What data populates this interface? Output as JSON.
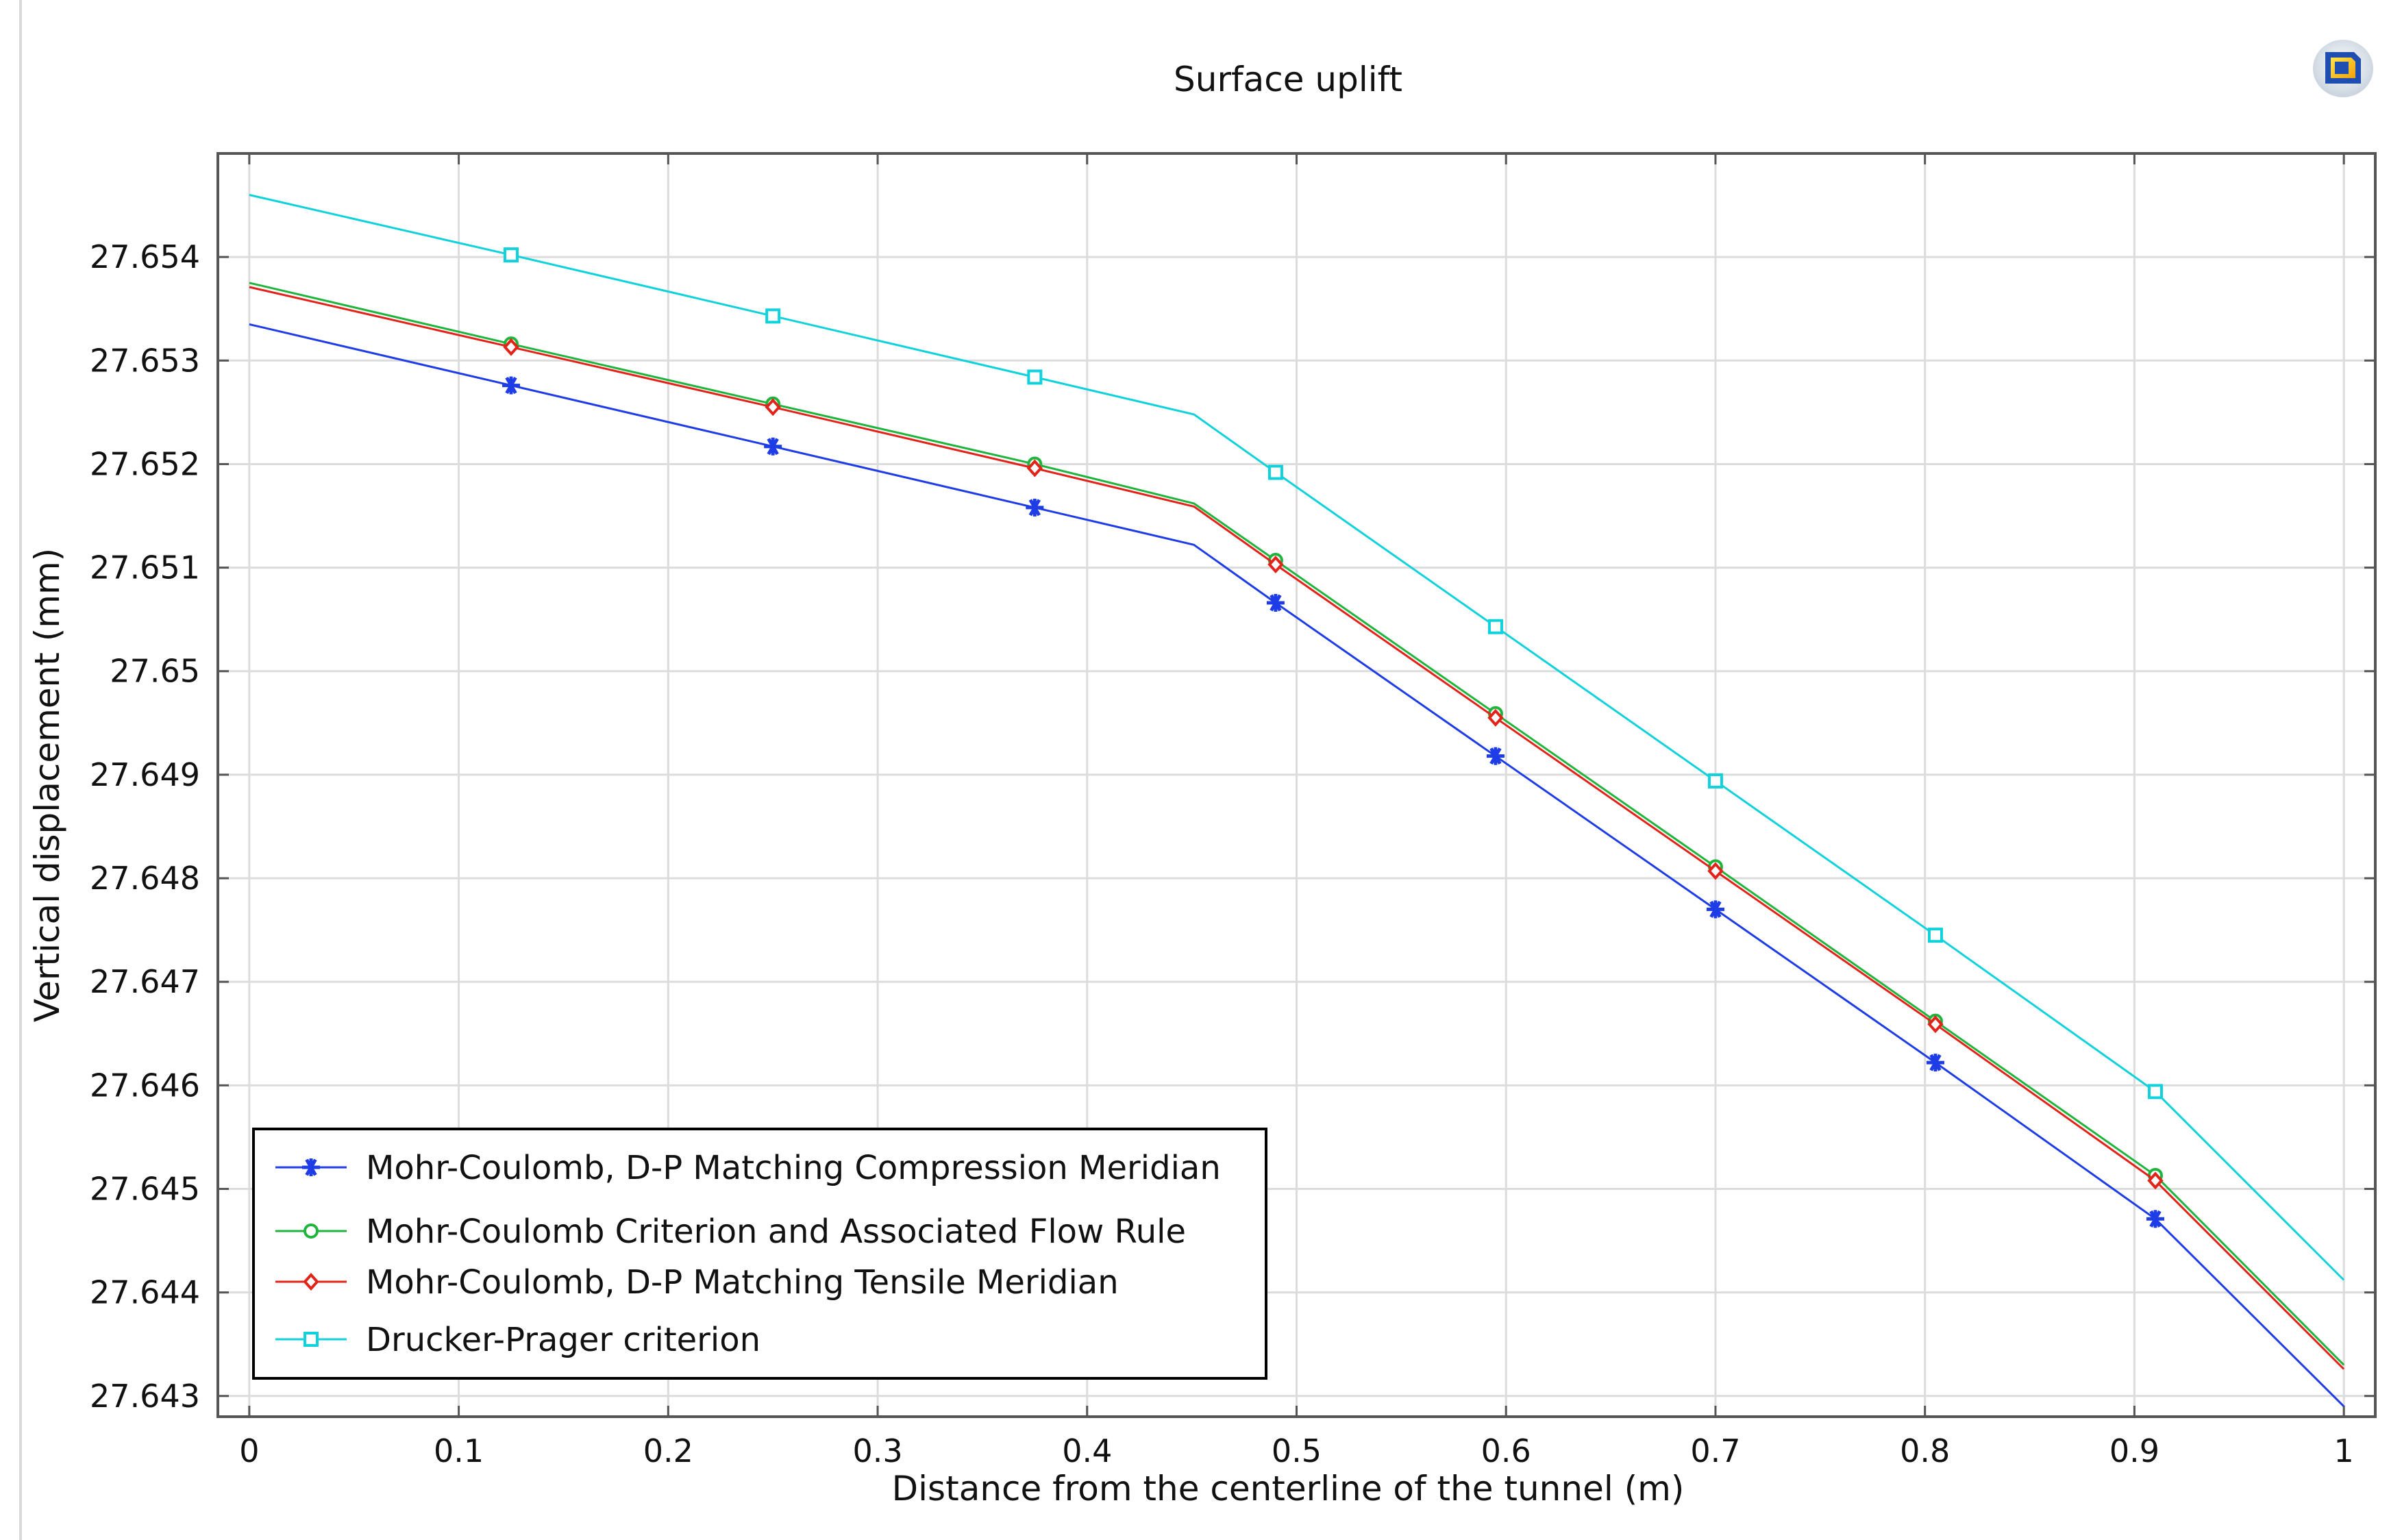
{
  "window": {
    "logo_icon": "comsol-logo-icon"
  },
  "chart_data": {
    "type": "line",
    "title": "Surface uplift",
    "xlabel": "Distance from the centerline of the tunnel (m)",
    "ylabel": "Vertical displacement (mm)",
    "xlim": [
      -0.015,
      1.015
    ],
    "ylim": [
      27.6428,
      27.655
    ],
    "xticks": [
      0,
      0.1,
      0.2,
      0.3,
      0.4,
      0.5,
      0.6,
      0.7,
      0.8,
      0.9,
      1
    ],
    "xtick_labels": [
      "0",
      "0.1",
      "0.2",
      "0.3",
      "0.4",
      "0.5",
      "0.6",
      "0.7",
      "0.8",
      "0.9",
      "1"
    ],
    "yticks": [
      27.643,
      27.644,
      27.645,
      27.646,
      27.647,
      27.648,
      27.649,
      27.65,
      27.651,
      27.652,
      27.653,
      27.654
    ],
    "ytick_labels": [
      "27.643",
      "27.644",
      "27.645",
      "27.646",
      "27.647",
      "27.648",
      "27.649",
      "27.65",
      "27.651",
      "27.652",
      "27.653",
      "27.654"
    ],
    "grid": true,
    "legend_position": "bottom-left",
    "series": [
      {
        "name": "Mohr-Coulomb, D-P Matching Compression Meridian",
        "color": "#1f3de6",
        "marker": "asterisk",
        "x": [
          0,
          0.125,
          0.25,
          0.375,
          0.451,
          0.49,
          0.595,
          0.7,
          0.805,
          0.91,
          1
        ],
        "y": [
          27.65335,
          27.65276,
          27.65217,
          27.65158,
          27.65122,
          27.65066,
          27.64918,
          27.6477,
          27.64622,
          27.64471,
          27.6429
        ],
        "marker_x": [
          0.125,
          0.25,
          0.375,
          0.49,
          0.595,
          0.7,
          0.805,
          0.91
        ],
        "marker_y": [
          27.65276,
          27.65217,
          27.65158,
          27.65066,
          27.64918,
          27.6477,
          27.64622,
          27.64471
        ]
      },
      {
        "name": "Mohr-Coulomb Criterion and Associated Flow Rule",
        "color": "#1fb43c",
        "marker": "circle",
        "x": [
          0,
          0.125,
          0.25,
          0.375,
          0.451,
          0.49,
          0.595,
          0.7,
          0.805,
          0.91,
          1
        ],
        "y": [
          27.65375,
          27.65316,
          27.65258,
          27.652,
          27.65162,
          27.65107,
          27.64959,
          27.64811,
          27.64662,
          27.64513,
          27.6433
        ],
        "marker_x": [
          0.125,
          0.25,
          0.375,
          0.49,
          0.595,
          0.7,
          0.805,
          0.91
        ],
        "marker_y": [
          27.65316,
          27.65258,
          27.652,
          27.65107,
          27.64959,
          27.64811,
          27.64662,
          27.64513
        ]
      },
      {
        "name": "Mohr-Coulomb, D-P Matching Tensile Meridian",
        "color": "#e2231a",
        "marker": "diamond",
        "x": [
          0,
          0.125,
          0.25,
          0.375,
          0.451,
          0.49,
          0.595,
          0.7,
          0.805,
          0.91,
          1
        ],
        "y": [
          27.65371,
          27.65313,
          27.65255,
          27.65196,
          27.65159,
          27.65103,
          27.64955,
          27.64807,
          27.64659,
          27.64508,
          27.64326
        ],
        "marker_x": [
          0.125,
          0.25,
          0.375,
          0.49,
          0.595,
          0.7,
          0.805,
          0.91
        ],
        "marker_y": [
          27.65313,
          27.65255,
          27.65196,
          27.65103,
          27.64955,
          27.64807,
          27.64659,
          27.64508
        ]
      },
      {
        "name": "Drucker-Prager criterion",
        "color": "#10d2dc",
        "marker": "square",
        "x": [
          0,
          0.125,
          0.25,
          0.375,
          0.451,
          0.49,
          0.595,
          0.7,
          0.805,
          0.91,
          1
        ],
        "y": [
          27.6546,
          27.65402,
          27.65343,
          27.65284,
          27.65248,
          27.65192,
          27.65043,
          27.64894,
          27.64745,
          27.64594,
          27.64412
        ],
        "marker_x": [
          0.125,
          0.25,
          0.375,
          0.49,
          0.595,
          0.7,
          0.805,
          0.91
        ],
        "marker_y": [
          27.65402,
          27.65343,
          27.65284,
          27.65192,
          27.65043,
          27.64894,
          27.64745,
          27.64594
        ]
      }
    ]
  }
}
